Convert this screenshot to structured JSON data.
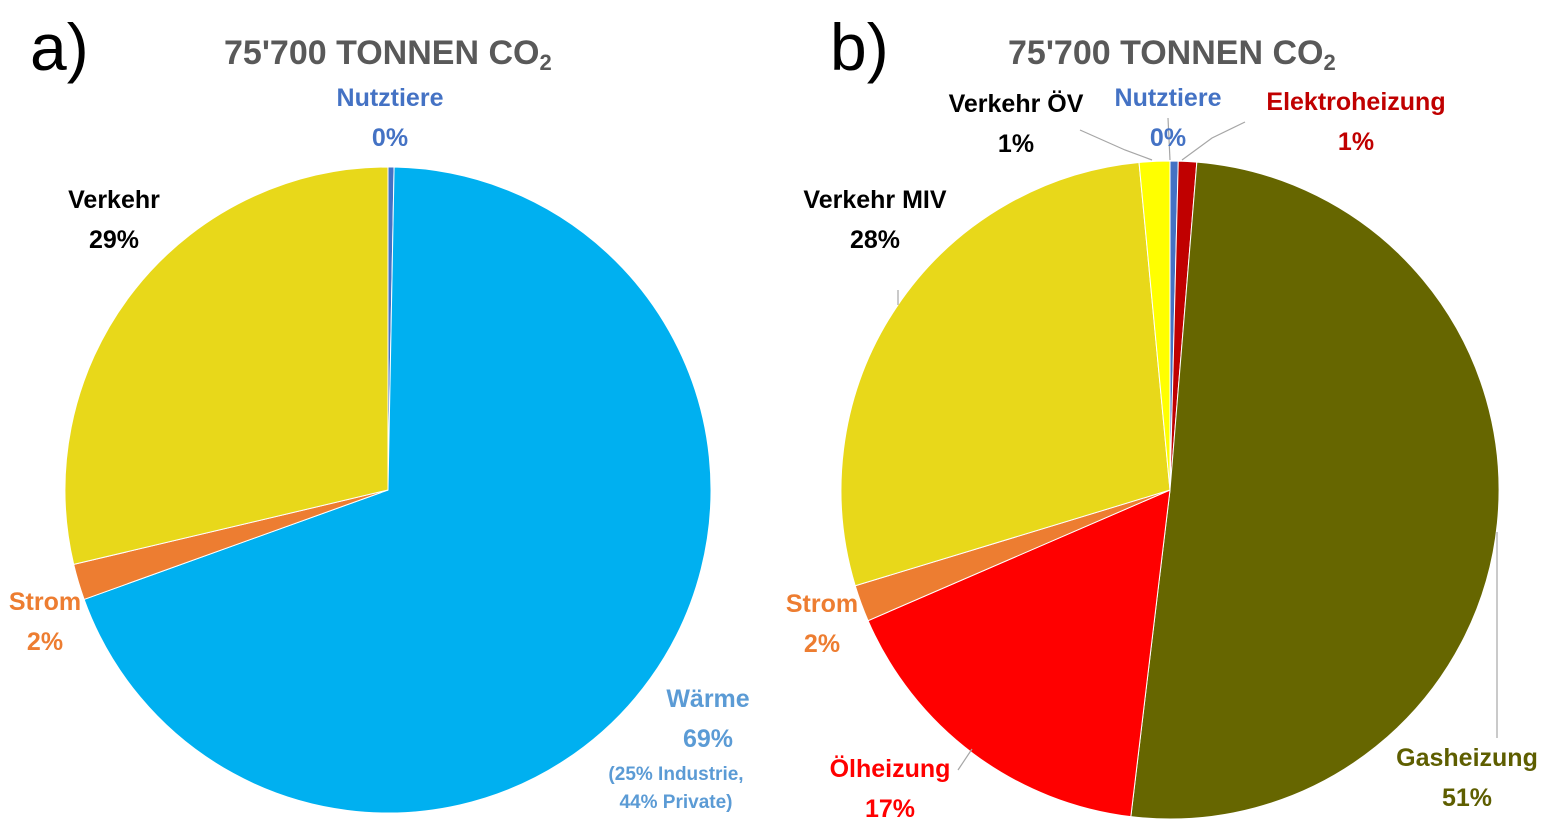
{
  "chart_data": [
    {
      "type": "pie",
      "panel": "a)",
      "title": "75'700 TONNEN CO",
      "title_subscript": "2",
      "slices": [
        {
          "name": "Nutztiere",
          "value": 0.3,
          "percent_label": "0%",
          "color": "#4472C4",
          "label_color": "#4472C4"
        },
        {
          "name": "Wärme",
          "value": 69.2,
          "percent_label": "69%",
          "note": [
            "(25% Industrie,",
            "44% Private)"
          ],
          "color": "#00B0F0",
          "label_color": "#5B9BD5"
        },
        {
          "name": "Strom",
          "value": 1.8,
          "percent_label": "2%",
          "color": "#ED7D31",
          "label_color": "#ED7D31"
        },
        {
          "name": "Verkehr",
          "value": 28.7,
          "percent_label": "29%",
          "color": "#E8D81A",
          "label_color": "#000000"
        }
      ]
    },
    {
      "type": "pie",
      "panel": "b)",
      "title": "75'700 TONNEN CO",
      "title_subscript": "2",
      "slices": [
        {
          "name": "Nutztiere",
          "value": 0.4,
          "percent_label": "0%",
          "color": "#4472C4",
          "label_color": "#4472C4"
        },
        {
          "name": "Elektroheizung",
          "value": 0.9,
          "percent_label": "1%",
          "color": "#C00000",
          "label_color": "#C00000"
        },
        {
          "name": "Gasheizung",
          "value": 50.6,
          "percent_label": "51%",
          "color": "#666600",
          "label_color": "#5E5E00"
        },
        {
          "name": "Ölheizung",
          "value": 16.6,
          "percent_label": "17%",
          "color": "#FF0000",
          "label_color": "#FF0000"
        },
        {
          "name": "Strom",
          "value": 1.8,
          "percent_label": "2%",
          "color": "#ED7D31",
          "label_color": "#ED7D31"
        },
        {
          "name": "Verkehr MIV",
          "value": 28.2,
          "percent_label": "28%",
          "color": "#E8D81A",
          "label_color": "#000000"
        },
        {
          "name": "Verkehr ÖV",
          "value": 1.5,
          "percent_label": "1%",
          "color": "#FFFF00",
          "label_color": "#000000"
        }
      ]
    }
  ]
}
